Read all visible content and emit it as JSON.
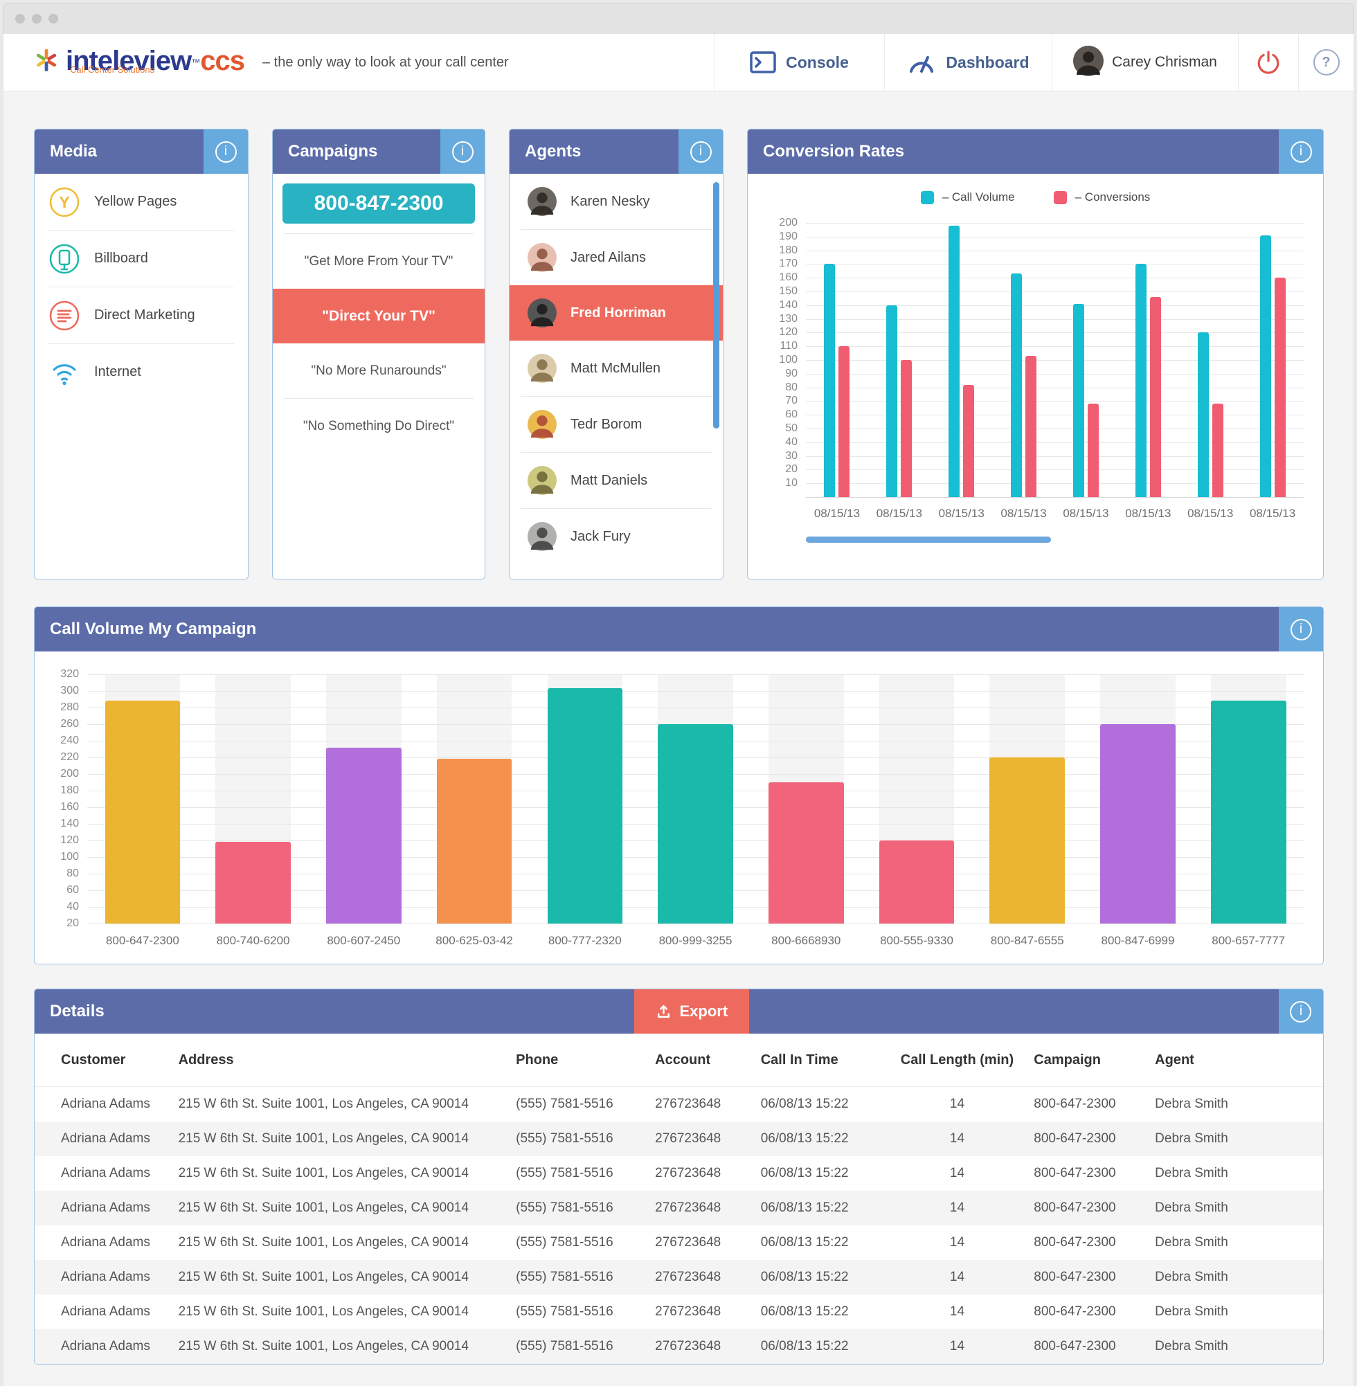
{
  "ui": {
    "info_glyph": "i",
    "help_glyph": "?"
  },
  "nav": {
    "logo": {
      "brand": "inteleview",
      "tm": "™",
      "suffix": "ccs",
      "sub": "Call Center Solutions"
    },
    "tagline": "–  the only way to look at your call center",
    "console_label": "Console",
    "dashboard_label": "Dashboard",
    "user_name": "Carey Chrisman"
  },
  "panels": {
    "media": {
      "title": "Media",
      "items": [
        {
          "label": "Yellow Pages",
          "icon": "yellow-pages-icon",
          "color": "#eebc35"
        },
        {
          "label": "Billboard",
          "icon": "billboard-icon",
          "color": "#1ab9a9"
        },
        {
          "label": "Direct Marketing",
          "icon": "direct-marketing-icon",
          "color": "#ef6a5e"
        },
        {
          "label": "Internet",
          "icon": "internet-wifi-icon",
          "color": "#31a8e0"
        }
      ]
    },
    "campaigns": {
      "title": "Campaigns",
      "phone_button": "800-847-2300",
      "items": [
        {
          "label": "\"Get More From Your TV\"",
          "selected": false
        },
        {
          "label": "\"Direct Your TV\"",
          "selected": true
        },
        {
          "label": "\"No More Runarounds\"",
          "selected": false
        },
        {
          "label": "\"No Something Do Direct\"",
          "selected": false
        }
      ]
    },
    "agents": {
      "title": "Agents",
      "items": [
        {
          "name": "Karen Nesky",
          "selected": false,
          "avatar_bg": "#6e6862",
          "avatar_fg": "#332e2a"
        },
        {
          "name": "Jared Ailans",
          "selected": false,
          "avatar_bg": "#e8c0b2",
          "avatar_fg": "#96604c"
        },
        {
          "name": "Fred Horriman",
          "selected": true,
          "avatar_bg": "#555555",
          "avatar_fg": "#222222"
        },
        {
          "name": "Matt McMullen",
          "selected": false,
          "avatar_bg": "#dccbaa",
          "avatar_fg": "#8d7a55"
        },
        {
          "name": "Tedr Borom",
          "selected": false,
          "avatar_bg": "#eaba4e",
          "avatar_fg": "#b3543a"
        },
        {
          "name": "Matt Daniels",
          "selected": false,
          "avatar_bg": "#ccc97f",
          "avatar_fg": "#79713f"
        },
        {
          "name": "Jack Fury",
          "selected": false,
          "avatar_bg": "#b0b0ae",
          "avatar_fg": "#4e4e4c"
        }
      ]
    },
    "conversion": {
      "title": "Conversion Rates",
      "legend": [
        {
          "label": "–  Call Volume",
          "color": "#16bdd3"
        },
        {
          "label": "–  Conversions",
          "color": "#f05d72"
        }
      ]
    },
    "call_volume": {
      "title": "Call Volume My Campaign"
    },
    "details": {
      "title": "Details",
      "export_label": "Export",
      "columns": [
        "Customer",
        "Address",
        "Phone",
        "Account",
        "Call In Time",
        "Call Length (min)",
        "Campaign",
        "Agent"
      ],
      "rows": [
        [
          "Adriana Adams",
          "215 W 6th St. Suite 1001, Los Angeles, CA 90014",
          "(555) 7581-5516",
          "276723648",
          "06/08/13 15:22",
          "14",
          "800-647-2300",
          "Debra Smith"
        ],
        [
          "Adriana Adams",
          "215 W 6th St. Suite 1001, Los Angeles, CA 90014",
          "(555) 7581-5516",
          "276723648",
          "06/08/13 15:22",
          "14",
          "800-647-2300",
          "Debra Smith"
        ],
        [
          "Adriana Adams",
          "215 W 6th St. Suite 1001, Los Angeles, CA 90014",
          "(555) 7581-5516",
          "276723648",
          "06/08/13 15:22",
          "14",
          "800-647-2300",
          "Debra Smith"
        ],
        [
          "Adriana Adams",
          "215 W 6th St. Suite 1001, Los Angeles, CA 90014",
          "(555) 7581-5516",
          "276723648",
          "06/08/13 15:22",
          "14",
          "800-647-2300",
          "Debra Smith"
        ],
        [
          "Adriana Adams",
          "215 W 6th St. Suite 1001, Los Angeles, CA 90014",
          "(555) 7581-5516",
          "276723648",
          "06/08/13 15:22",
          "14",
          "800-647-2300",
          "Debra Smith"
        ],
        [
          "Adriana Adams",
          "215 W 6th St. Suite 1001, Los Angeles, CA 90014",
          "(555) 7581-5516",
          "276723648",
          "06/08/13 15:22",
          "14",
          "800-647-2300",
          "Debra Smith"
        ],
        [
          "Adriana Adams",
          "215 W 6th St. Suite 1001, Los Angeles, CA 90014",
          "(555) 7581-5516",
          "276723648",
          "06/08/13 15:22",
          "14",
          "800-647-2300",
          "Debra Smith"
        ],
        [
          "Adriana Adams",
          "215 W 6th St. Suite 1001, Los Angeles, CA 90014",
          "(555) 7581-5516",
          "276723648",
          "06/08/13 15:22",
          "14",
          "800-647-2300",
          "Debra Smith"
        ]
      ]
    }
  },
  "chart_data": [
    {
      "name": "conversion_rates",
      "type": "bar",
      "title": "Conversion Rates",
      "categories": [
        "08/15/13",
        "08/15/13",
        "08/15/13",
        "08/15/13",
        "08/15/13",
        "08/15/13",
        "08/15/13",
        "08/15/13"
      ],
      "series": [
        {
          "name": "Call Volume",
          "color": "#16bdd3",
          "values": [
            170,
            140,
            198,
            163,
            141,
            170,
            120,
            191
          ]
        },
        {
          "name": "Conversions",
          "color": "#f05d72",
          "values": [
            110,
            100,
            82,
            103,
            68,
            146,
            68,
            160
          ]
        }
      ],
      "xlabel": "",
      "ylabel": "",
      "ylim": [
        0,
        200
      ],
      "ytick_step": 10,
      "grid": true,
      "legend_position": "top-center"
    },
    {
      "name": "call_volume_my_campaign",
      "type": "bar",
      "title": "Call Volume My Campaign",
      "categories": [
        "800-647-2300",
        "800-740-6200",
        "800-607-2450",
        "800-625-03-42",
        "800-777-2320",
        "800-999-3255",
        "800-6668930",
        "800-555-9330",
        "800-847-6555",
        "800-847-6999",
        "800-657-7777"
      ],
      "values": [
        288,
        118,
        232,
        218,
        303,
        260,
        190,
        120,
        220,
        260,
        288
      ],
      "bar_colors": [
        "#ecb531",
        "#f2647c",
        "#b26edb",
        "#f4914c",
        "#1ab9a9",
        "#1ab9a9",
        "#f2647c",
        "#f2647c",
        "#ecb531",
        "#b26edb",
        "#1ab9a9"
      ],
      "xlabel": "",
      "ylabel": "",
      "ylim": [
        20,
        320
      ],
      "ytick_step": 20,
      "grid": true,
      "legend_position": "none"
    }
  ]
}
